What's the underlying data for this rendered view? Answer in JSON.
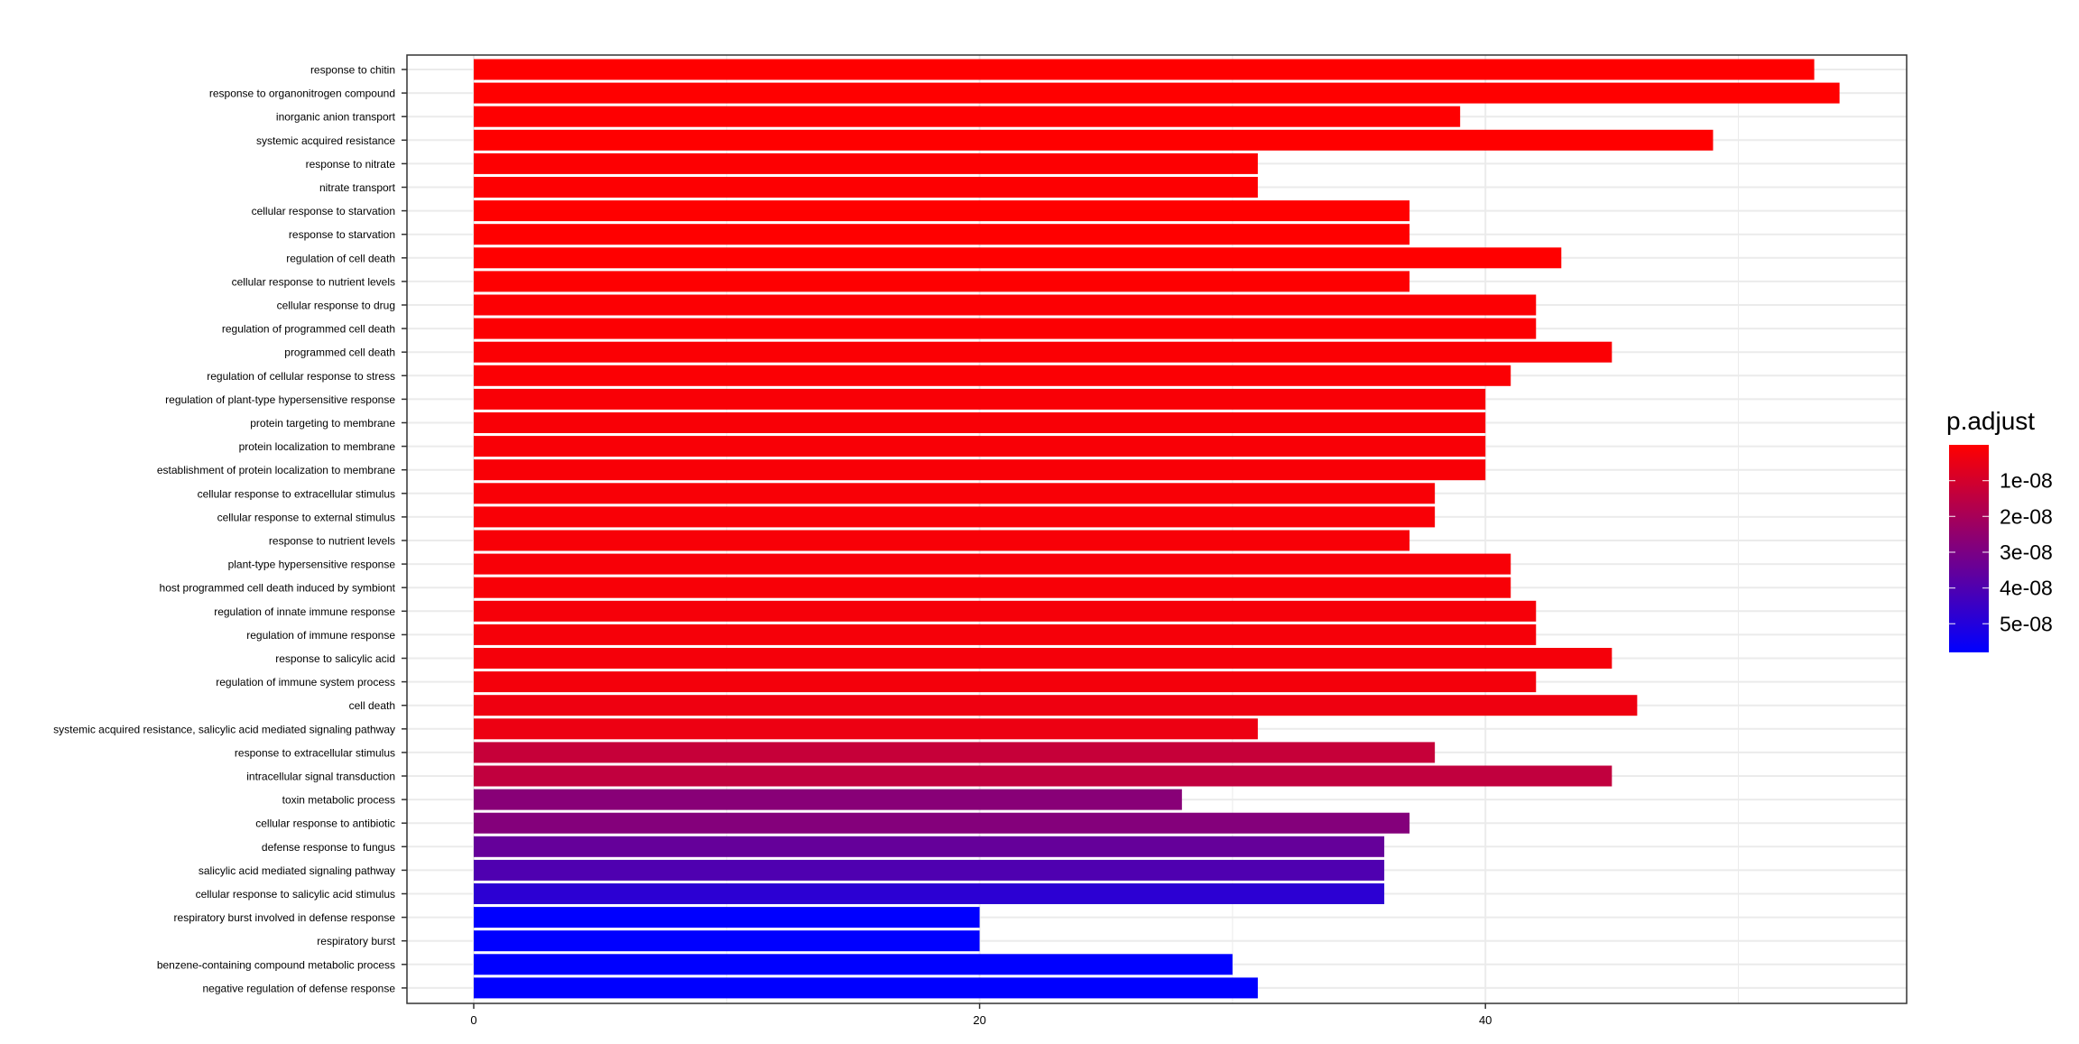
{
  "chart_data": {
    "type": "bar",
    "orientation": "horizontal",
    "title": "",
    "xlabel": "",
    "ylabel": "",
    "xlim": [
      0,
      57
    ],
    "x_ticks": [
      0,
      20,
      40
    ],
    "grid": true,
    "legend": {
      "title": "p.adjust",
      "position": "right",
      "labels": [
        "1e-08",
        "2e-08",
        "3e-08",
        "4e-08",
        "5e-08"
      ],
      "low_color": "#ff0000",
      "high_color": "#0000ff",
      "color_range": [
        0,
        5.8e-08
      ]
    },
    "categories": [
      "response to chitin",
      "response to organonitrogen compound",
      "inorganic anion transport",
      "systemic acquired resistance",
      "response to nitrate",
      "nitrate transport",
      "cellular response to starvation",
      "response to starvation",
      "regulation of cell death",
      "cellular response to nutrient levels",
      "cellular response to drug",
      "regulation of programmed cell death",
      "programmed cell death",
      "regulation of cellular response to stress",
      "regulation of plant-type hypersensitive response",
      "protein targeting to membrane",
      "protein localization to membrane",
      "establishment of protein localization to membrane",
      "cellular response to extracellular stimulus",
      "cellular response to external stimulus",
      "response to nutrient levels",
      "plant-type hypersensitive response",
      "host programmed cell death induced by symbiont",
      "regulation of innate immune response",
      "regulation of immune response",
      "response to salicylic acid",
      "regulation of immune system process",
      "cell death",
      "systemic acquired resistance, salicylic acid mediated signaling pathway",
      "response to extracellular stimulus",
      "intracellular signal transduction",
      "toxin metabolic process",
      "cellular response to antibiotic",
      "defense response to fungus",
      "salicylic acid mediated signaling pathway",
      "cellular response to salicylic acid stimulus",
      "respiratory burst involved in defense response",
      "respiratory burst",
      "benzene-containing compound metabolic process",
      "negative regulation of defense response"
    ],
    "values": [
      53,
      54,
      39,
      49,
      31,
      31,
      37,
      37,
      43,
      37,
      42,
      42,
      45,
      41,
      40,
      40,
      40,
      40,
      38,
      38,
      37,
      41,
      41,
      42,
      42,
      45,
      42,
      46,
      31,
      38,
      45,
      28,
      37,
      36,
      36,
      36,
      20,
      20,
      30,
      31
    ],
    "p_adjust": [
      1e-12,
      1e-12,
      2e-10,
      1e-11,
      5e-10,
      5e-10,
      1e-10,
      1e-10,
      1e-10,
      2e-10,
      6e-10,
      6e-10,
      8e-10,
      1e-09,
      1.3e-09,
      1.3e-09,
      1.3e-09,
      1.3e-09,
      1.4e-09,
      1.4e-09,
      1.5e-09,
      1.7e-09,
      1.7e-09,
      2e-09,
      2e-09,
      2.3e-09,
      2.6e-09,
      3.6e-09,
      4e-09,
      1.3e-08,
      1.4e-08,
      2.7e-08,
      2.8e-08,
      3.5e-08,
      4e-08,
      4.8e-08,
      5.8e-08,
      5.8e-08,
      5.8e-08,
      5.8e-08
    ]
  }
}
